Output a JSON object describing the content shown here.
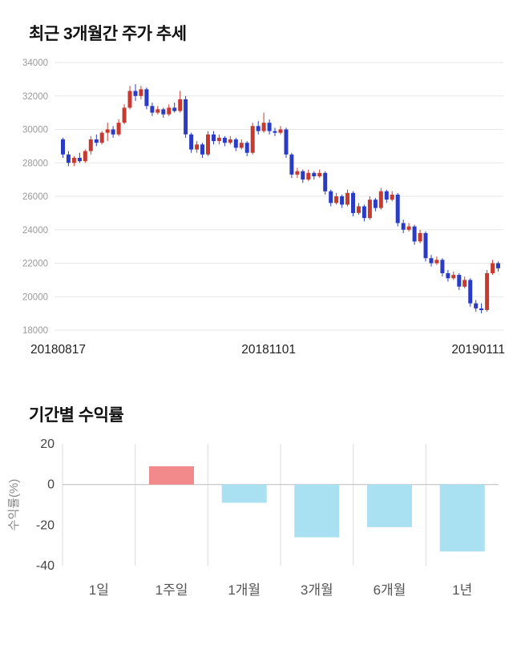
{
  "page": {
    "section1_title": "최근 3개월간 주가 추세",
    "section2_title": "기간별 수익률"
  },
  "chart_data": [
    {
      "type": "candlestick",
      "title": "최근 3개월간 주가 추세",
      "ylim": [
        18000,
        34000
      ],
      "yticks": [
        18000,
        20000,
        22000,
        24000,
        26000,
        28000,
        30000,
        32000,
        34000
      ],
      "x_axis_labels": [
        "20180817",
        "20181101",
        "20190111"
      ],
      "up_color": "#c8392f",
      "down_color": "#2b3cc4",
      "grid": true,
      "candles": [
        [
          29400,
          29500,
          28300,
          28500
        ],
        [
          28500,
          28700,
          27800,
          28000
        ],
        [
          28000,
          28400,
          27800,
          28300
        ],
        [
          28300,
          28600,
          28000,
          28100
        ],
        [
          28100,
          28800,
          28000,
          28700
        ],
        [
          28700,
          29600,
          28500,
          29400
        ],
        [
          29400,
          29700,
          29000,
          29200
        ],
        [
          29200,
          29900,
          29100,
          29800
        ],
        [
          29800,
          30400,
          29300,
          30000
        ],
        [
          30000,
          30200,
          29500,
          29700
        ],
        [
          29700,
          30600,
          29600,
          30400
        ],
        [
          30400,
          31500,
          30300,
          31300
        ],
        [
          31300,
          32600,
          31200,
          32300
        ],
        [
          32300,
          32700,
          31700,
          32000
        ],
        [
          32000,
          32600,
          31800,
          32400
        ],
        [
          32400,
          32500,
          31200,
          31400
        ],
        [
          31400,
          31600,
          30800,
          31000
        ],
        [
          31000,
          31400,
          30900,
          31200
        ],
        [
          31200,
          31300,
          30700,
          30900
        ],
        [
          30900,
          31500,
          30800,
          31300
        ],
        [
          31300,
          31600,
          31000,
          31100
        ],
        [
          31100,
          32300,
          31000,
          31800
        ],
        [
          31800,
          32000,
          29500,
          29700
        ],
        [
          29700,
          29800,
          28600,
          28800
        ],
        [
          28800,
          29300,
          28600,
          29100
        ],
        [
          29100,
          29200,
          28300,
          28500
        ],
        [
          28500,
          29900,
          28400,
          29700
        ],
        [
          29700,
          29900,
          29100,
          29300
        ],
        [
          29300,
          29700,
          29100,
          29500
        ],
        [
          29500,
          29600,
          29000,
          29200
        ],
        [
          29200,
          29600,
          29100,
          29400
        ],
        [
          29400,
          29500,
          28700,
          28900
        ],
        [
          28900,
          29400,
          28800,
          29200
        ],
        [
          29200,
          29300,
          28400,
          28600
        ],
        [
          28600,
          30400,
          28500,
          30200
        ],
        [
          30200,
          30500,
          29700,
          29900
        ],
        [
          29900,
          31000,
          29800,
          30400
        ],
        [
          30400,
          30600,
          29700,
          29900
        ],
        [
          29900,
          30100,
          29600,
          29800
        ],
        [
          29800,
          30200,
          29700,
          30000
        ],
        [
          30000,
          30100,
          28300,
          28500
        ],
        [
          28500,
          28600,
          27100,
          27300
        ],
        [
          27300,
          27700,
          27100,
          27500
        ],
        [
          27500,
          27600,
          26800,
          27000
        ],
        [
          27000,
          27600,
          26900,
          27400
        ],
        [
          27400,
          27500,
          27000,
          27200
        ],
        [
          27200,
          27600,
          27100,
          27400
        ],
        [
          27400,
          27500,
          26100,
          26300
        ],
        [
          26300,
          26400,
          25400,
          25600
        ],
        [
          25600,
          26200,
          25500,
          26000
        ],
        [
          26000,
          26100,
          25300,
          25500
        ],
        [
          25500,
          26400,
          25400,
          26200
        ],
        [
          26200,
          26300,
          24800,
          25000
        ],
        [
          25000,
          25600,
          24900,
          25400
        ],
        [
          25400,
          25500,
          24500,
          24700
        ],
        [
          24700,
          26000,
          24600,
          25800
        ],
        [
          25800,
          25900,
          25100,
          25300
        ],
        [
          25300,
          26500,
          25200,
          26300
        ],
        [
          26300,
          26400,
          25600,
          25800
        ],
        [
          25800,
          26300,
          25700,
          26100
        ],
        [
          26100,
          26200,
          24200,
          24400
        ],
        [
          24400,
          24600,
          23800,
          24000
        ],
        [
          24000,
          24400,
          23900,
          24200
        ],
        [
          24200,
          24300,
          23100,
          23300
        ],
        [
          23300,
          24000,
          23200,
          23800
        ],
        [
          23800,
          23900,
          22100,
          22300
        ],
        [
          22300,
          22500,
          21800,
          22000
        ],
        [
          22000,
          22400,
          21900,
          22200
        ],
        [
          22200,
          22300,
          21200,
          21400
        ],
        [
          21400,
          21600,
          20900,
          21100
        ],
        [
          21100,
          21500,
          21000,
          21300
        ],
        [
          21300,
          21400,
          20400,
          20600
        ],
        [
          20600,
          21200,
          20500,
          21000
        ],
        [
          21000,
          21100,
          19400,
          19600
        ],
        [
          19600,
          19800,
          19100,
          19300
        ],
        [
          19300,
          19600,
          19000,
          19200
        ],
        [
          19200,
          21600,
          19100,
          21400
        ],
        [
          21400,
          22200,
          21300,
          22000
        ],
        [
          22000,
          22100,
          21500,
          21700
        ]
      ]
    },
    {
      "type": "bar",
      "title": "기간별 수익률",
      "categories": [
        "1일",
        "1주일",
        "1개월",
        "3개월",
        "6개월",
        "1년"
      ],
      "values": [
        0,
        9,
        -9,
        -26,
        -21,
        -33
      ],
      "ylabel": "수익률(%)",
      "yticks": [
        20,
        0,
        -20,
        -40
      ],
      "ylim": [
        -40,
        20
      ],
      "grid": true,
      "positive_color": "#f28a8c",
      "negative_color": "#a9e0f2"
    }
  ]
}
